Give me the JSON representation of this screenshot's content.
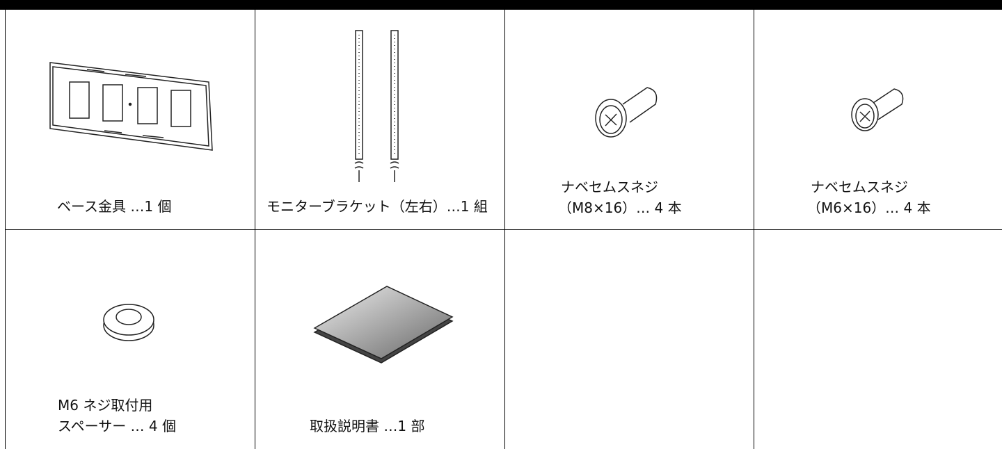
{
  "items": [
    {
      "label": [
        "ベース金具 …1 個"
      ]
    },
    {
      "label": [
        "モニターブラケット（左右）…1 組"
      ]
    },
    {
      "label": [
        "ナベセムスネジ",
        "（M8×16）… 4 本"
      ]
    },
    {
      "label": [
        "ナベセムスネジ",
        "（M6×16）… 4 本"
      ]
    },
    {
      "label": [
        "M6 ネジ取付用",
        "スペーサー … 4 個"
      ]
    },
    {
      "label": [
        "取扱説明書 …1 部"
      ]
    }
  ]
}
